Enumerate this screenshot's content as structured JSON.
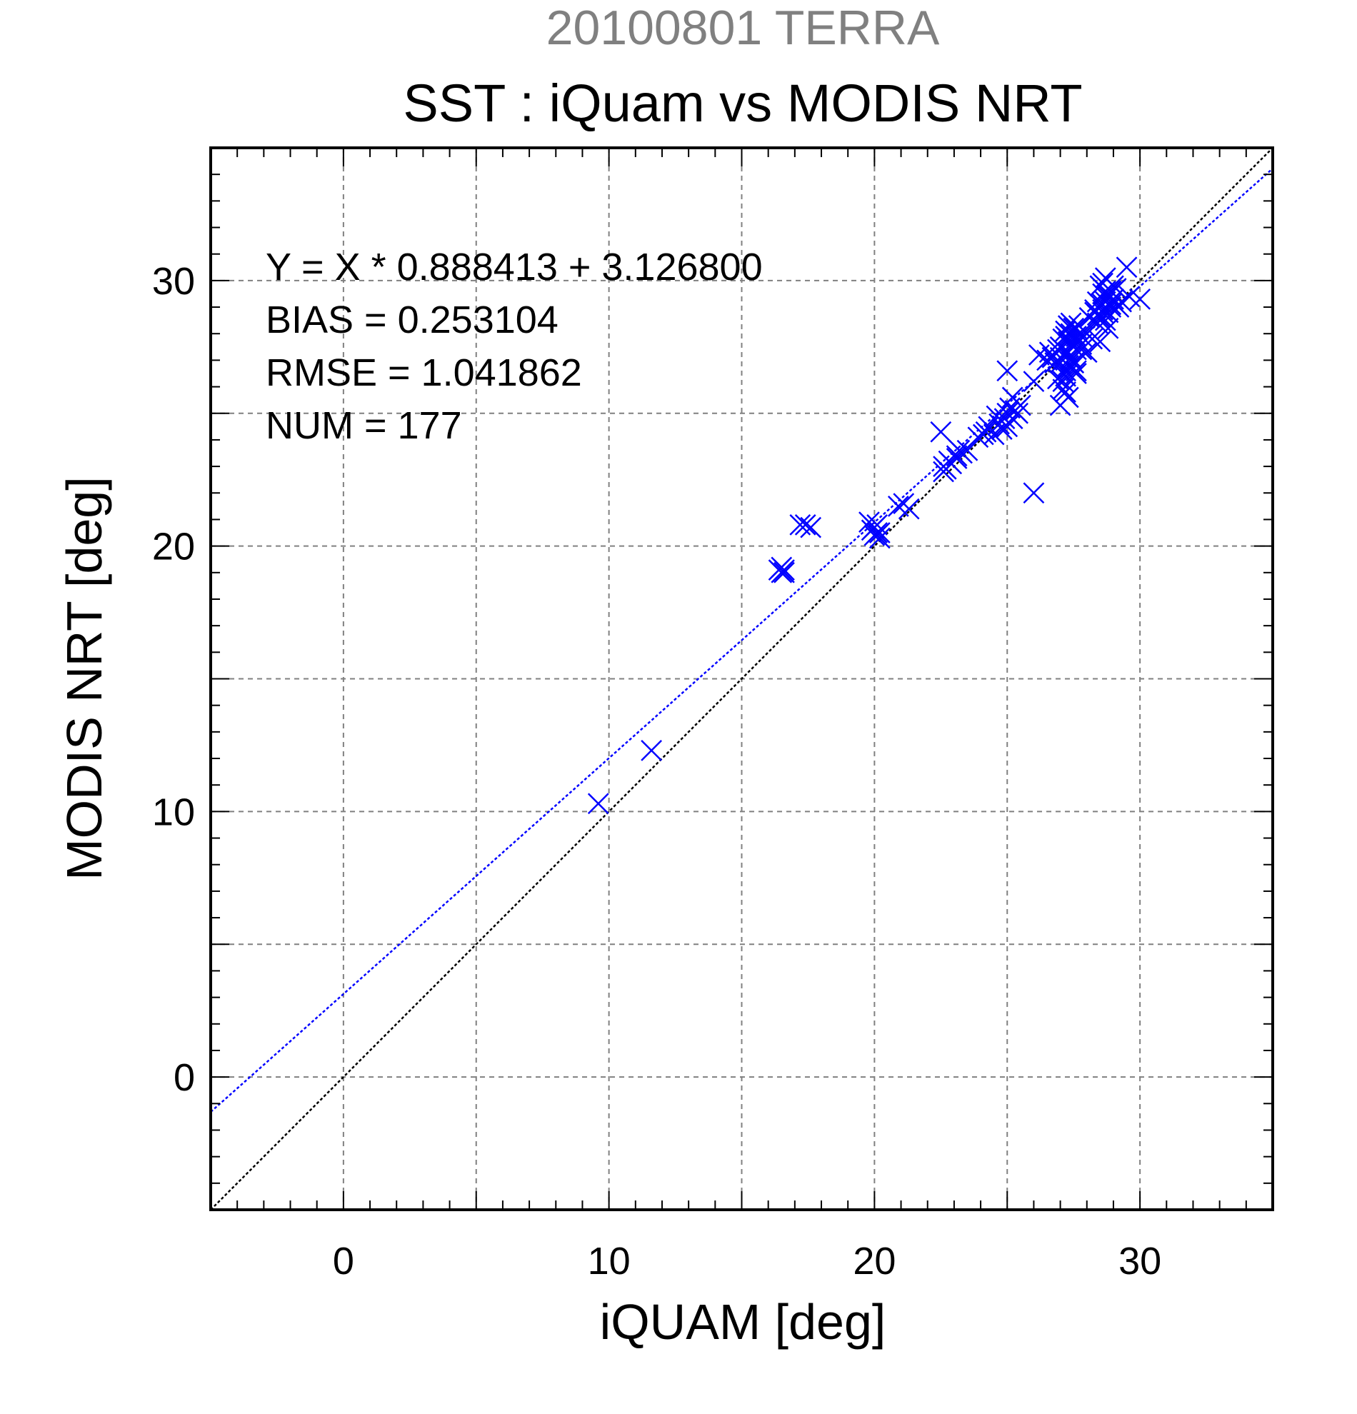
{
  "chart_data": {
    "type": "scatter",
    "suptitle": "20100801 TERRA",
    "title": "SST : iQuam vs MODIS NRT",
    "xlabel": "iQUAM [deg]",
    "ylabel": "MODIS NRT [deg]",
    "xlim": [
      -5,
      35
    ],
    "ylim": [
      -5,
      35
    ],
    "xticks": [
      0,
      10,
      20,
      30
    ],
    "yticks": [
      0,
      10,
      20,
      30
    ],
    "grid": true,
    "annotations": [
      "Y = X * 0.888413 + 3.126800",
      "BIAS = 0.253104",
      "RMSE = 1.041862",
      "NUM = 177"
    ],
    "colors": {
      "points": "#0000ff",
      "fit_line": "#0000ff",
      "identity_line": "#000000",
      "suptitle": "#808080",
      "grid": "#808080"
    },
    "fit_line": {
      "slope": 0.888413,
      "intercept": 3.1268
    },
    "identity_line": {
      "slope": 1,
      "intercept": 0
    },
    "series": [
      {
        "marker": "x",
        "x": [
          9.6,
          11.6,
          16.4,
          16.5,
          16.5,
          16.6,
          16.6,
          17.2,
          17.4,
          17.6,
          19.8,
          19.9,
          20.0,
          20.0,
          20.1,
          20.2,
          20.2,
          20.1,
          20.9,
          21.1,
          21.3,
          22.5,
          22.6,
          22.7,
          22.8,
          22.9,
          22.6,
          23.1,
          23.2,
          23.3,
          23.1,
          23.5,
          23.9,
          24.1,
          24.2,
          24.3,
          24.5,
          24.6,
          24.7,
          24.8,
          24.9,
          25.0,
          25.1,
          25.2,
          25.3,
          25.4,
          25.5,
          25.0,
          25.2,
          26.0,
          26.2,
          26.5,
          26.7,
          26.8,
          26.9,
          27.0,
          27.0,
          27.1,
          27.1,
          27.2,
          27.2,
          27.2,
          27.3,
          27.3,
          27.3,
          27.3,
          27.4,
          27.4,
          27.4,
          27.4,
          27.5,
          27.5,
          27.5,
          27.6,
          27.6,
          27.6,
          27.7,
          27.7,
          27.8,
          27.8,
          27.9,
          26.9,
          27.0,
          27.2,
          27.3,
          27.2,
          27.1,
          27.4,
          27.6,
          27.3,
          27.5,
          27.0,
          27.2,
          27.4,
          27.1,
          27.3,
          27.6,
          28.0,
          28.1,
          28.3,
          28.4,
          28.4,
          28.5,
          28.5,
          28.6,
          28.6,
          28.6,
          28.7,
          28.7,
          28.8,
          28.8,
          28.9,
          28.9,
          29.0,
          29.0,
          29.1,
          29.2,
          29.3,
          29.5,
          29.6,
          30.0,
          28.5,
          28.7,
          28.9,
          28.6,
          28.3,
          28.8,
          29.0,
          28.7,
          28.4,
          28.6,
          28.9,
          26.0,
          25.0,
          26.6,
          27.8,
          28.2
        ],
        "y": [
          10.3,
          12.3,
          19.1,
          19.0,
          19.2,
          19.0,
          19.1,
          20.8,
          20.8,
          20.7,
          20.9,
          20.6,
          20.4,
          20.7,
          20.5,
          20.3,
          20.5,
          20.8,
          21.5,
          21.6,
          21.4,
          24.3,
          23.0,
          22.9,
          23.2,
          23.1,
          22.8,
          23.4,
          23.6,
          23.5,
          23.3,
          23.6,
          24.1,
          24.2,
          24.3,
          24.5,
          24.2,
          24.9,
          24.6,
          24.4,
          24.8,
          25.0,
          25.2,
          24.8,
          25.1,
          25.0,
          25.3,
          26.6,
          25.6,
          26.2,
          27.2,
          27.0,
          27.1,
          26.9,
          27.4,
          27.1,
          25.3,
          26.5,
          27.8,
          25.8,
          26.6,
          28.1,
          27.3,
          26.8,
          28.3,
          25.6,
          27.0,
          27.6,
          28.0,
          26.7,
          27.5,
          28.2,
          26.9,
          27.4,
          27.9,
          28.2,
          27.7,
          28.3,
          27.6,
          27.9,
          28.1,
          26.3,
          26.9,
          27.3,
          27.8,
          26.4,
          25.9,
          27.1,
          26.5,
          27.7,
          26.9,
          27.5,
          27.9,
          28.4,
          26.2,
          28.0,
          26.6,
          27.3,
          28.6,
          28.8,
          28.4,
          29.2,
          28.6,
          29.8,
          29.1,
          29.5,
          28.9,
          29.2,
          30.1,
          29.4,
          28.8,
          29.6,
          29.1,
          29.8,
          29.3,
          29.7,
          29.0,
          29.2,
          30.5,
          29.4,
          29.3,
          27.7,
          28.5,
          29.0,
          29.9,
          28.9,
          28.2,
          29.3,
          29.6,
          28.7,
          28.8,
          29.6,
          22.0,
          24.5,
          27.3,
          27.4,
          27.8
        ]
      }
    ]
  }
}
